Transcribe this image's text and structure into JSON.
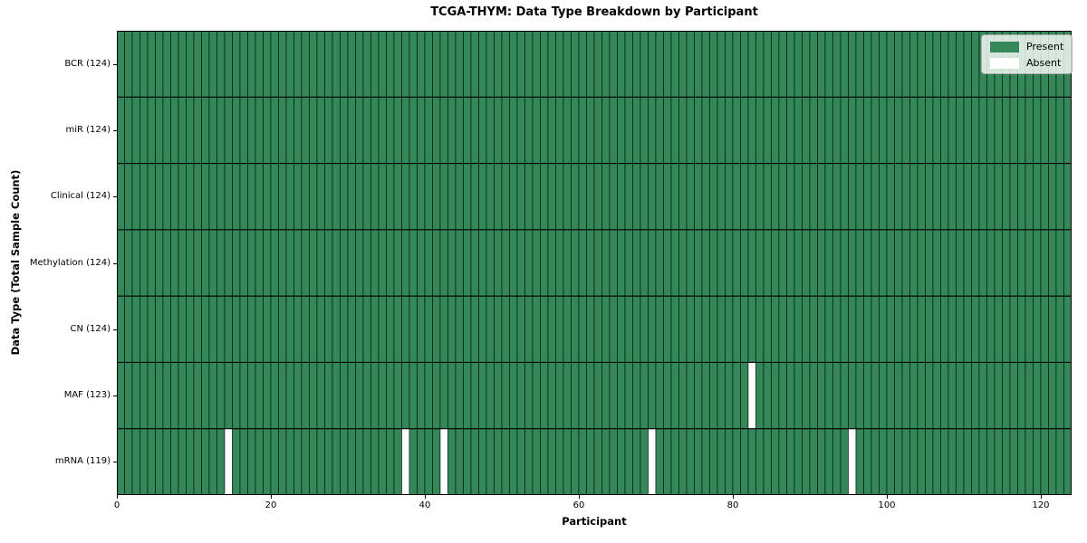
{
  "chart_data": {
    "type": "heatmap",
    "title": "TCGA-THYM: Data Type Breakdown by Participant",
    "xlabel": "Participant",
    "ylabel": "Data Type (Total Sample Count)",
    "n_participants": 124,
    "x_range": [
      0,
      124
    ],
    "x_ticks": [
      0,
      20,
      40,
      60,
      80,
      100,
      120
    ],
    "grid": false,
    "legend_position": "upper right",
    "rows": [
      {
        "label": "BCR (124)",
        "data_type": "BCR",
        "present_count": 124,
        "absent_participants": []
      },
      {
        "label": "miR (124)",
        "data_type": "miR",
        "present_count": 124,
        "absent_participants": []
      },
      {
        "label": "Clinical (124)",
        "data_type": "Clinical",
        "present_count": 124,
        "absent_participants": []
      },
      {
        "label": "Methylation (124)",
        "data_type": "Methylation",
        "present_count": 124,
        "absent_participants": []
      },
      {
        "label": "CN (124)",
        "data_type": "CN",
        "present_count": 124,
        "absent_participants": []
      },
      {
        "label": "MAF (123)",
        "data_type": "MAF",
        "present_count": 123,
        "absent_participants": [
          82
        ]
      },
      {
        "label": "mRNA (119)",
        "data_type": "mRNA",
        "present_count": 119,
        "absent_participants": [
          14,
          37,
          42,
          69,
          95
        ]
      }
    ],
    "legend": [
      {
        "label": "Present",
        "color": "#338758"
      },
      {
        "label": "Absent",
        "color": "#ffffff"
      }
    ],
    "colors": {
      "present": "#338758",
      "absent": "#ffffff",
      "cell_edge": "#000000",
      "row_separator": "#000000",
      "frame": "#000000",
      "legend_border": "#b0b0b0",
      "background": "#ffffff"
    }
  }
}
